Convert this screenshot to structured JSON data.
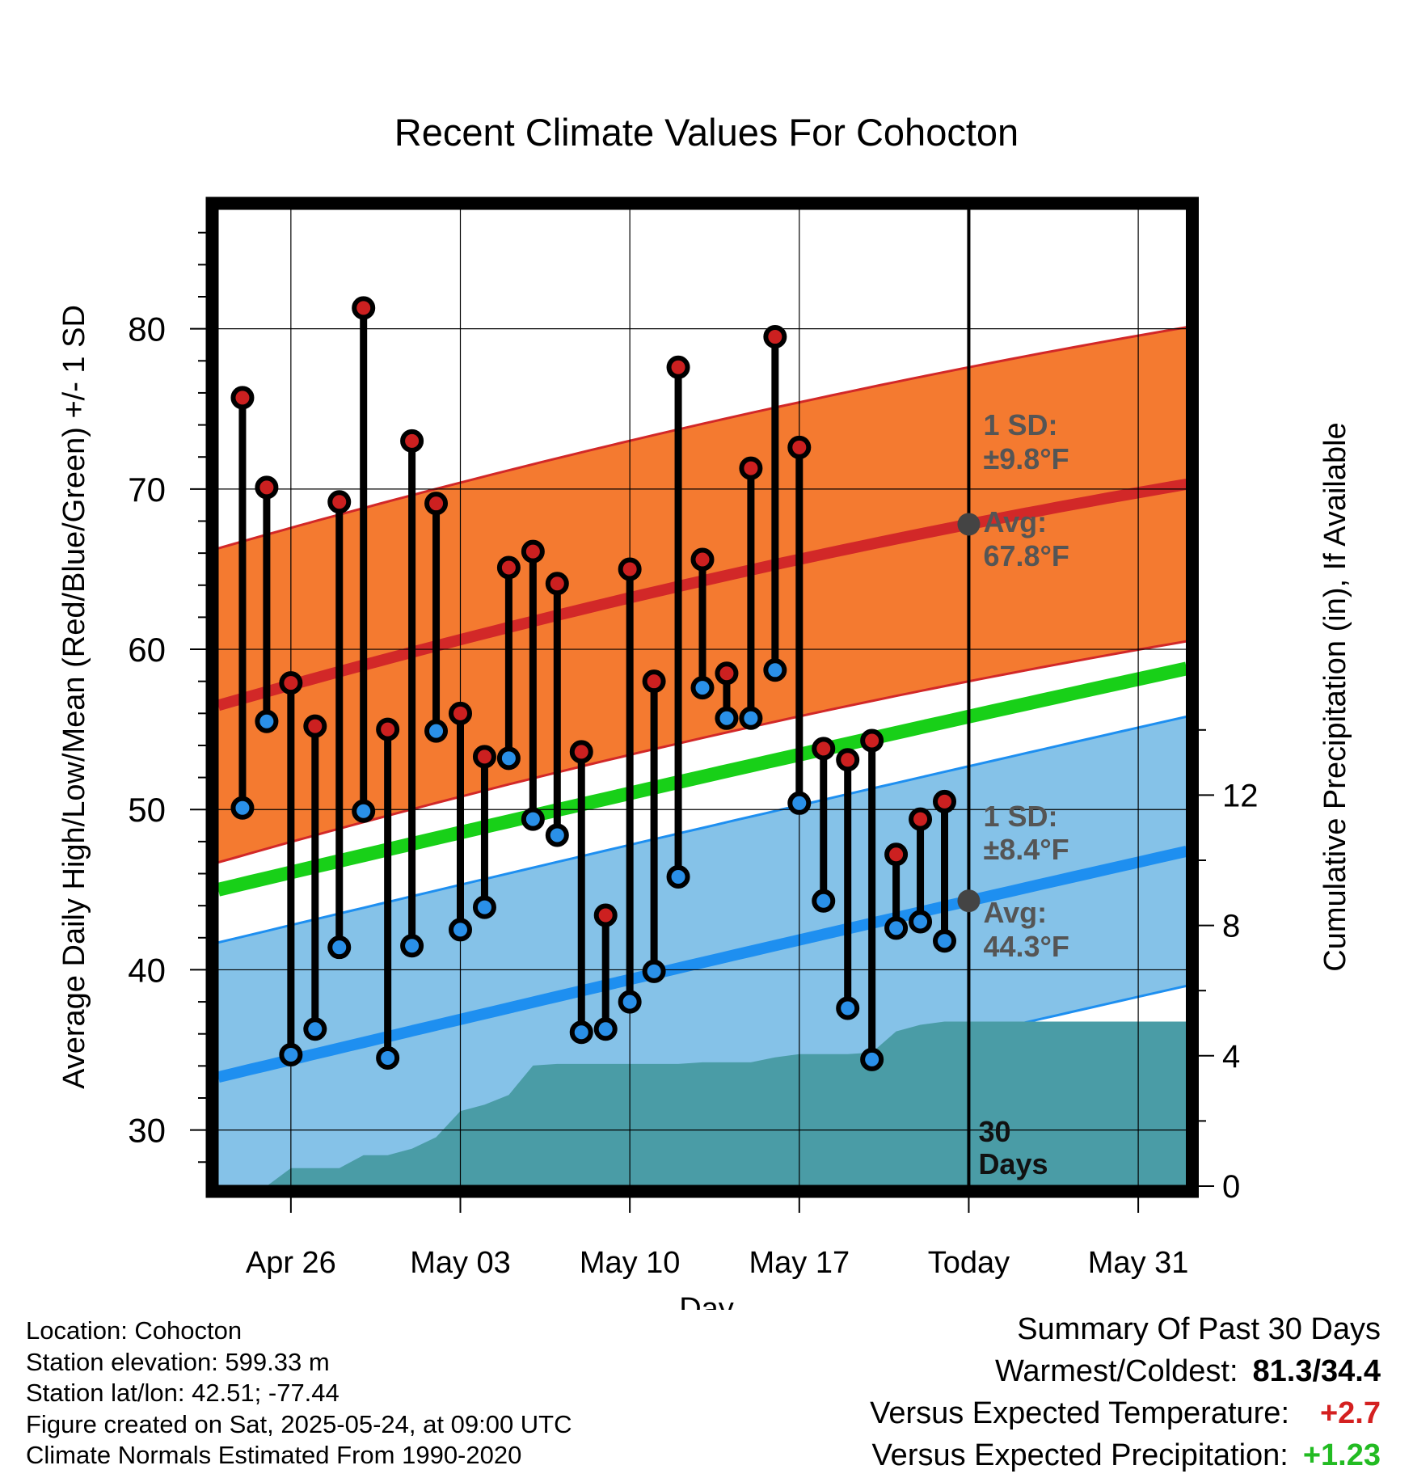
{
  "chart_data": {
    "type": "line",
    "title": "Recent Climate Values For Cohocton",
    "xlabel": "Day",
    "ylabel": "Average Daily High/Low/Mean (Red/Blue/Green) +/- 1 SD",
    "ylabel_right": "Cumulative Precipitation (in), If Available",
    "x_tick_labels": [
      "Apr 26",
      "May 03",
      "May 10",
      "May 17",
      "Today",
      "May 31"
    ],
    "x_range": [
      "2025-04-23",
      "2025-06-02"
    ],
    "today": "2025-05-24",
    "ylim": [
      26.5,
      87.5
    ],
    "y_ticks": [
      30,
      40,
      50,
      60,
      70,
      80
    ],
    "y2lim": [
      0,
      30
    ],
    "y2_ticks": [
      0,
      4,
      8,
      12
    ],
    "grid": true,
    "colors": {
      "high_normal": "#d22828",
      "high_band": "#f47a30",
      "low_normal": "#1e8ff0",
      "low_band": "#85c2e8",
      "mean_normal": "#18d018",
      "precip": "#4a9ca6",
      "high_marker": "#cc2020",
      "low_marker": "#2a90e8",
      "today_marker": "#444444"
    },
    "normals": {
      "dates": [
        "2025-04-23",
        "2025-05-24",
        "2025-06-02"
      ],
      "avg_high": [
        56.5,
        67.8,
        70.3
      ],
      "avg_low": [
        33.3,
        44.3,
        47.4
      ],
      "mean": [
        45.0,
        55.8,
        58.8
      ],
      "high_sd": 9.8,
      "low_sd": 8.4
    },
    "series": [
      {
        "name": "High",
        "dates": [
          "2025-04-24",
          "2025-04-25",
          "2025-04-26",
          "2025-04-27",
          "2025-04-28",
          "2025-04-29",
          "2025-04-30",
          "2025-05-01",
          "2025-05-02",
          "2025-05-03",
          "2025-05-04",
          "2025-05-05",
          "2025-05-06",
          "2025-05-07",
          "2025-05-08",
          "2025-05-09",
          "2025-05-10",
          "2025-05-11",
          "2025-05-12",
          "2025-05-13",
          "2025-05-14",
          "2025-05-15",
          "2025-05-16",
          "2025-05-17",
          "2025-05-18",
          "2025-05-19",
          "2025-05-20",
          "2025-05-21",
          "2025-05-22",
          "2025-05-23"
        ],
        "values": [
          75.7,
          70.1,
          57.9,
          55.2,
          69.2,
          81.3,
          55.0,
          73.0,
          69.1,
          56.0,
          53.3,
          65.1,
          66.1,
          64.1,
          53.6,
          43.4,
          65.0,
          58.0,
          77.6,
          65.6,
          58.5,
          71.3,
          79.5,
          72.6,
          53.8,
          53.1,
          54.3,
          47.2,
          49.4,
          50.5
        ]
      },
      {
        "name": "Low",
        "dates": [
          "2025-04-24",
          "2025-04-25",
          "2025-04-26",
          "2025-04-27",
          "2025-04-28",
          "2025-04-29",
          "2025-04-30",
          "2025-05-01",
          "2025-05-02",
          "2025-05-03",
          "2025-05-04",
          "2025-05-05",
          "2025-05-06",
          "2025-05-07",
          "2025-05-08",
          "2025-05-09",
          "2025-05-10",
          "2025-05-11",
          "2025-05-12",
          "2025-05-13",
          "2025-05-14",
          "2025-05-15",
          "2025-05-16",
          "2025-05-17",
          "2025-05-18",
          "2025-05-19",
          "2025-05-20",
          "2025-05-21",
          "2025-05-22",
          "2025-05-23"
        ],
        "values": [
          50.1,
          55.5,
          34.7,
          36.3,
          41.4,
          49.9,
          34.5,
          41.5,
          54.9,
          42.5,
          43.9,
          53.2,
          49.4,
          48.4,
          36.1,
          36.3,
          38.0,
          39.9,
          45.8,
          57.6,
          55.7,
          55.7,
          58.7,
          50.4,
          44.3,
          37.6,
          34.4,
          42.6,
          43.0,
          41.8
        ]
      }
    ],
    "precip": {
      "dates": [
        "2025-04-23",
        "2025-04-24",
        "2025-04-25",
        "2025-04-26",
        "2025-04-27",
        "2025-04-28",
        "2025-04-29",
        "2025-04-30",
        "2025-05-01",
        "2025-05-02",
        "2025-05-03",
        "2025-05-04",
        "2025-05-05",
        "2025-05-06",
        "2025-05-07",
        "2025-05-08",
        "2025-05-09",
        "2025-05-10",
        "2025-05-11",
        "2025-05-12",
        "2025-05-13",
        "2025-05-14",
        "2025-05-15",
        "2025-05-16",
        "2025-05-17",
        "2025-05-18",
        "2025-05-19",
        "2025-05-20",
        "2025-05-21",
        "2025-05-22",
        "2025-05-23",
        "2025-05-24",
        "2025-06-02"
      ],
      "values": [
        0,
        0,
        0,
        0.55,
        0.55,
        0.55,
        0.95,
        0.95,
        1.15,
        1.5,
        2.3,
        2.5,
        2.8,
        3.7,
        3.75,
        3.75,
        3.75,
        3.75,
        3.75,
        3.75,
        3.8,
        3.8,
        3.8,
        3.95,
        4.05,
        4.05,
        4.05,
        4.1,
        4.75,
        4.95,
        5.05,
        5.05,
        5.05
      ]
    },
    "annotations": {
      "high_sd_label": "1 SD:",
      "high_sd_value": "±9.8°F",
      "high_avg_label": "Avg:",
      "high_avg_value": "67.8°F",
      "low_sd_label": "1 SD:",
      "low_sd_value": "±8.4°F",
      "low_avg_label": "Avg:",
      "low_avg_value": "44.3°F",
      "days_line1": "30",
      "days_line2": "Days"
    }
  },
  "footer": {
    "location": "Location: Cohocton",
    "elevation": "Station elevation: 599.33 m",
    "latlon": "Station lat/lon: 42.51; -77.44",
    "created": "Figure created on Sat, 2025-05-24, at 09:00 UTC",
    "normals": "Climate Normals Estimated From 1990-2020"
  },
  "summary": {
    "heading": "Summary Of Past 30 Days",
    "warm_cold_label": "Warmest/Coldest:",
    "warm_cold_value": "81.3/34.4",
    "temp_label": "Versus Expected Temperature:",
    "temp_value": "+2.7",
    "temp_color": "#d42020",
    "precip_label": "Versus Expected Precipitation:",
    "precip_value": "+1.23",
    "precip_color": "#22bb22"
  }
}
